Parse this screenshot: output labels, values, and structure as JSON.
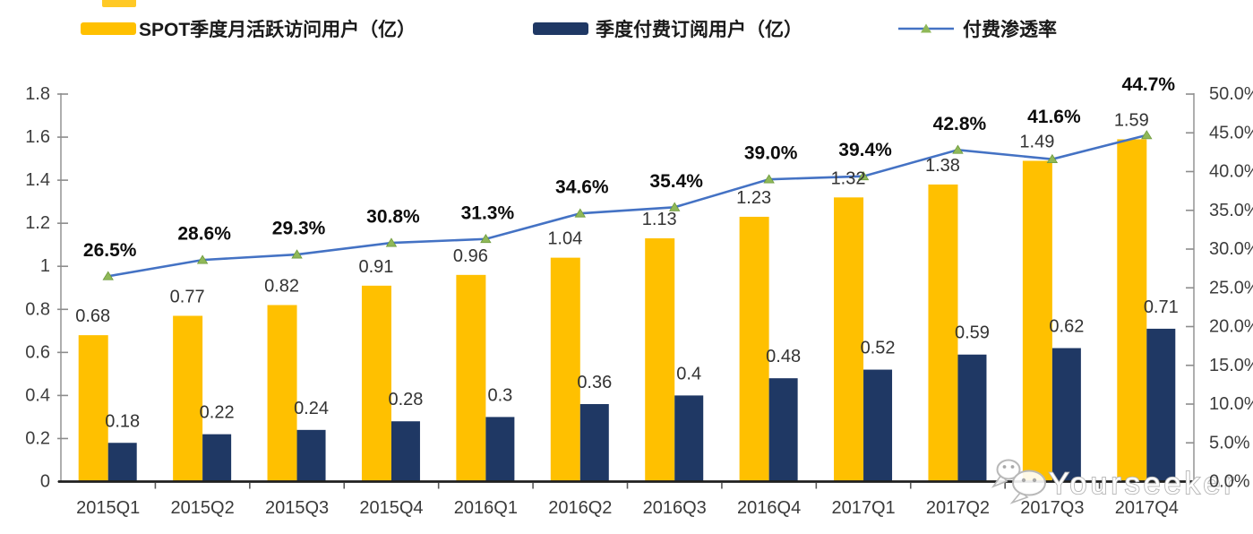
{
  "legend": {
    "items": [
      {
        "label": "SPOT季度月活跃访问用户（亿）",
        "swatch": "bar",
        "color": "#FFC000"
      },
      {
        "label": "季度付费订阅用户（亿）",
        "swatch": "bar",
        "color": "#1F3864"
      },
      {
        "label": "付费渗透率",
        "swatch": "line-triangle",
        "color": "#4472C4",
        "marker_color": "#8FB858"
      }
    ]
  },
  "chart_data": {
    "type": "combo-bar-line",
    "categories": [
      "2015Q1",
      "2015Q2",
      "2015Q3",
      "2015Q4",
      "2016Q1",
      "2016Q2",
      "2016Q3",
      "2016Q4",
      "2017Q1",
      "2017Q2",
      "2017Q3",
      "2017Q4"
    ],
    "series": [
      {
        "name": "SPOT季度月活跃访问用户（亿）",
        "type": "bar",
        "axis": "left",
        "color": "#FFC000",
        "values": [
          0.68,
          0.77,
          0.82,
          0.91,
          0.96,
          1.04,
          1.13,
          1.23,
          1.32,
          1.38,
          1.49,
          1.59
        ],
        "labels": [
          "0.68",
          "0.77",
          "0.82",
          "0.91",
          "0.96",
          "1.04",
          "1.13",
          "1.23",
          "1.32",
          "1.38",
          "1.49",
          "1.59"
        ]
      },
      {
        "name": "季度付费订阅用户（亿）",
        "type": "bar",
        "axis": "left",
        "color": "#1F3864",
        "values": [
          0.18,
          0.22,
          0.24,
          0.28,
          0.3,
          0.36,
          0.4,
          0.48,
          0.52,
          0.59,
          0.62,
          0.71
        ],
        "labels": [
          "0.18",
          "0.22",
          "0.24",
          "0.28",
          "0.3",
          "0.36",
          "0.4",
          "0.48",
          "0.52",
          "0.59",
          "0.62",
          "0.71"
        ]
      },
      {
        "name": "付费渗透率",
        "type": "line",
        "axis": "right",
        "color": "#4472C4",
        "marker": "triangle",
        "marker_color": "#8FB858",
        "values": [
          26.5,
          28.6,
          29.3,
          30.8,
          31.3,
          34.6,
          35.4,
          39.0,
          39.4,
          42.8,
          41.6,
          44.7
        ],
        "labels": [
          "26.5%",
          "28.6%",
          "29.3%",
          "30.8%",
          "31.3%",
          "34.6%",
          "35.4%",
          "39.0%",
          "39.4%",
          "42.8%",
          "41.6%",
          "44.7%"
        ]
      }
    ],
    "left_axis": {
      "min": 0,
      "max": 1.8,
      "step": 0.2,
      "ticks": [
        "1.8",
        "1.6",
        "1.4",
        "1.2",
        "1",
        "0.8",
        "0.6",
        "0.4",
        "0.2",
        "0"
      ]
    },
    "right_axis": {
      "min": 0,
      "max": 50,
      "step": 5,
      "ticks": [
        "50.0%",
        "45.0%",
        "40.0%",
        "35.0%",
        "30.0%",
        "25.0%",
        "20.0%",
        "15.0%",
        "10.0%",
        "5.0%",
        "0.0%"
      ]
    },
    "grid": false,
    "legend_position": "top"
  },
  "watermark": {
    "text": "Yourseeker",
    "icon": "wechat-icon"
  }
}
